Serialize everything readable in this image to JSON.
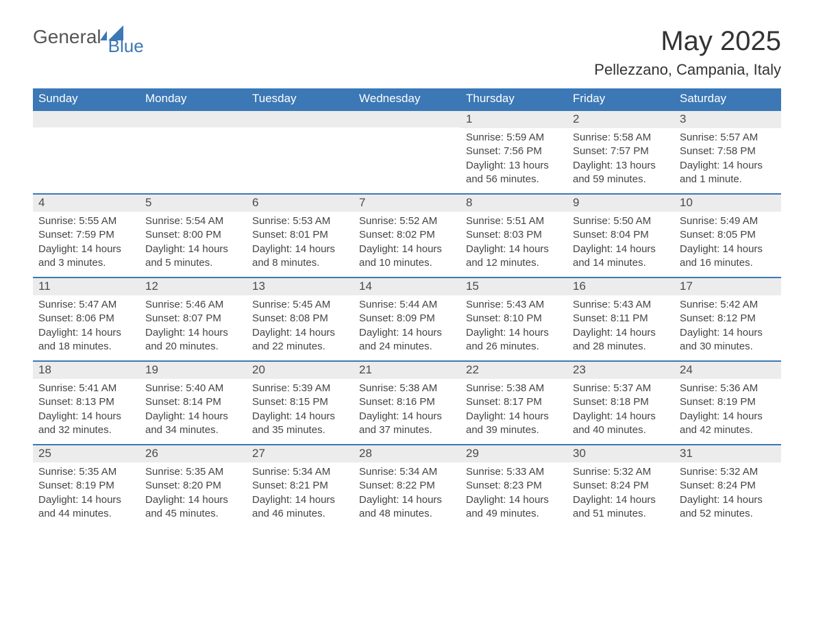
{
  "brand": {
    "name_part1": "General",
    "name_part2": "Blue",
    "text_color": "#555555",
    "accent_color": "#3b78b5"
  },
  "title": "May 2025",
  "location": "Pellezzano, Campania, Italy",
  "calendar": {
    "header_bg": "#3b78b5",
    "header_text_color": "#ffffff",
    "row_border_color": "#3b78b5",
    "daynum_bg": "#ececec",
    "body_text_color": "#444444",
    "weekdays": [
      "Sunday",
      "Monday",
      "Tuesday",
      "Wednesday",
      "Thursday",
      "Friday",
      "Saturday"
    ],
    "weeks": [
      [
        null,
        null,
        null,
        null,
        {
          "day": "1",
          "sunrise": "5:59 AM",
          "sunset": "7:56 PM",
          "daylight": "13 hours and 56 minutes."
        },
        {
          "day": "2",
          "sunrise": "5:58 AM",
          "sunset": "7:57 PM",
          "daylight": "13 hours and 59 minutes."
        },
        {
          "day": "3",
          "sunrise": "5:57 AM",
          "sunset": "7:58 PM",
          "daylight": "14 hours and 1 minute."
        }
      ],
      [
        {
          "day": "4",
          "sunrise": "5:55 AM",
          "sunset": "7:59 PM",
          "daylight": "14 hours and 3 minutes."
        },
        {
          "day": "5",
          "sunrise": "5:54 AM",
          "sunset": "8:00 PM",
          "daylight": "14 hours and 5 minutes."
        },
        {
          "day": "6",
          "sunrise": "5:53 AM",
          "sunset": "8:01 PM",
          "daylight": "14 hours and 8 minutes."
        },
        {
          "day": "7",
          "sunrise": "5:52 AM",
          "sunset": "8:02 PM",
          "daylight": "14 hours and 10 minutes."
        },
        {
          "day": "8",
          "sunrise": "5:51 AM",
          "sunset": "8:03 PM",
          "daylight": "14 hours and 12 minutes."
        },
        {
          "day": "9",
          "sunrise": "5:50 AM",
          "sunset": "8:04 PM",
          "daylight": "14 hours and 14 minutes."
        },
        {
          "day": "10",
          "sunrise": "5:49 AM",
          "sunset": "8:05 PM",
          "daylight": "14 hours and 16 minutes."
        }
      ],
      [
        {
          "day": "11",
          "sunrise": "5:47 AM",
          "sunset": "8:06 PM",
          "daylight": "14 hours and 18 minutes."
        },
        {
          "day": "12",
          "sunrise": "5:46 AM",
          "sunset": "8:07 PM",
          "daylight": "14 hours and 20 minutes."
        },
        {
          "day": "13",
          "sunrise": "5:45 AM",
          "sunset": "8:08 PM",
          "daylight": "14 hours and 22 minutes."
        },
        {
          "day": "14",
          "sunrise": "5:44 AM",
          "sunset": "8:09 PM",
          "daylight": "14 hours and 24 minutes."
        },
        {
          "day": "15",
          "sunrise": "5:43 AM",
          "sunset": "8:10 PM",
          "daylight": "14 hours and 26 minutes."
        },
        {
          "day": "16",
          "sunrise": "5:43 AM",
          "sunset": "8:11 PM",
          "daylight": "14 hours and 28 minutes."
        },
        {
          "day": "17",
          "sunrise": "5:42 AM",
          "sunset": "8:12 PM",
          "daylight": "14 hours and 30 minutes."
        }
      ],
      [
        {
          "day": "18",
          "sunrise": "5:41 AM",
          "sunset": "8:13 PM",
          "daylight": "14 hours and 32 minutes."
        },
        {
          "day": "19",
          "sunrise": "5:40 AM",
          "sunset": "8:14 PM",
          "daylight": "14 hours and 34 minutes."
        },
        {
          "day": "20",
          "sunrise": "5:39 AM",
          "sunset": "8:15 PM",
          "daylight": "14 hours and 35 minutes."
        },
        {
          "day": "21",
          "sunrise": "5:38 AM",
          "sunset": "8:16 PM",
          "daylight": "14 hours and 37 minutes."
        },
        {
          "day": "22",
          "sunrise": "5:38 AM",
          "sunset": "8:17 PM",
          "daylight": "14 hours and 39 minutes."
        },
        {
          "day": "23",
          "sunrise": "5:37 AM",
          "sunset": "8:18 PM",
          "daylight": "14 hours and 40 minutes."
        },
        {
          "day": "24",
          "sunrise": "5:36 AM",
          "sunset": "8:19 PM",
          "daylight": "14 hours and 42 minutes."
        }
      ],
      [
        {
          "day": "25",
          "sunrise": "5:35 AM",
          "sunset": "8:19 PM",
          "daylight": "14 hours and 44 minutes."
        },
        {
          "day": "26",
          "sunrise": "5:35 AM",
          "sunset": "8:20 PM",
          "daylight": "14 hours and 45 minutes."
        },
        {
          "day": "27",
          "sunrise": "5:34 AM",
          "sunset": "8:21 PM",
          "daylight": "14 hours and 46 minutes."
        },
        {
          "day": "28",
          "sunrise": "5:34 AM",
          "sunset": "8:22 PM",
          "daylight": "14 hours and 48 minutes."
        },
        {
          "day": "29",
          "sunrise": "5:33 AM",
          "sunset": "8:23 PM",
          "daylight": "14 hours and 49 minutes."
        },
        {
          "day": "30",
          "sunrise": "5:32 AM",
          "sunset": "8:24 PM",
          "daylight": "14 hours and 51 minutes."
        },
        {
          "day": "31",
          "sunrise": "5:32 AM",
          "sunset": "8:24 PM",
          "daylight": "14 hours and 52 minutes."
        }
      ]
    ],
    "labels": {
      "sunrise_prefix": "Sunrise: ",
      "sunset_prefix": "Sunset: ",
      "daylight_prefix": "Daylight: "
    }
  }
}
